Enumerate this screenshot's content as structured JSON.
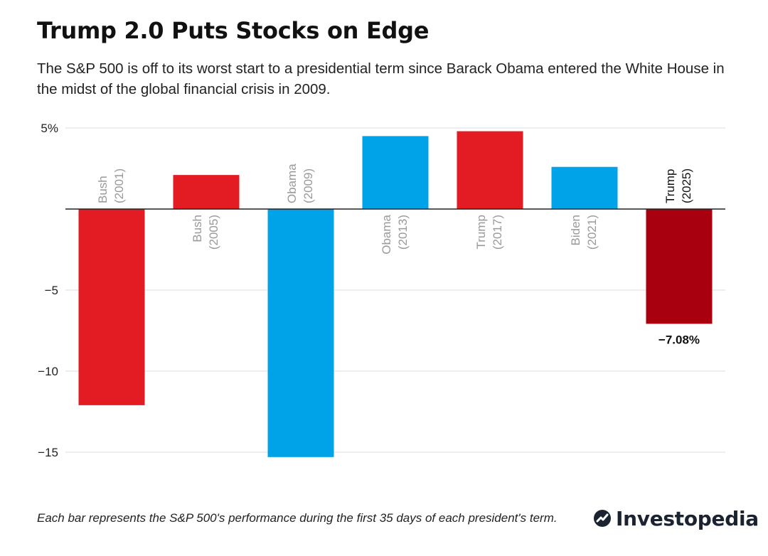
{
  "title": "Trump 2.0 Puts Stocks on Edge",
  "subtitle": "The S&P 500 is off to its worst start to a presidential term since Barack Obama entered the White House in the midst of the global financial crisis in 2009.",
  "footnote": "Each bar represents the S&P 500's performance during the first 35 days of each president's term.",
  "brand": {
    "name": "Investopedia",
    "logo_icon": "investopedia-logo-icon"
  },
  "colors": {
    "republican": "#e31b23",
    "democrat": "#00a3e8",
    "highlight": "#a8000f",
    "axis": "#222222",
    "grid": "#dddddd",
    "muted_label": "#999999"
  },
  "chart_data": {
    "type": "bar",
    "ylim": [
      -16.7,
      5.5
    ],
    "yticks": [
      5,
      0,
      -5,
      -10,
      -15
    ],
    "ytick_labels": [
      "5%",
      "",
      "−5",
      "−10",
      "−15"
    ],
    "grid": true,
    "bars": [
      {
        "line1": "Bush",
        "line2": "(2001)",
        "value": -12.1,
        "party": "republican"
      },
      {
        "line1": "Bush",
        "line2": "(2005)",
        "value": 2.1,
        "party": "republican"
      },
      {
        "line1": "Obama",
        "line2": "(2009)",
        "value": -15.3,
        "party": "democrat"
      },
      {
        "line1": "Obama",
        "line2": "(2013)",
        "value": 4.5,
        "party": "democrat"
      },
      {
        "line1": "Trump",
        "line2": "(2017)",
        "value": 4.8,
        "party": "republican"
      },
      {
        "line1": "Biden",
        "line2": "(2021)",
        "value": 2.6,
        "party": "democrat"
      },
      {
        "line1": "Trump",
        "line2": "(2025)",
        "value": -7.08,
        "party": "highlight",
        "highlighted": true,
        "data_label": "−7.08%"
      }
    ]
  }
}
